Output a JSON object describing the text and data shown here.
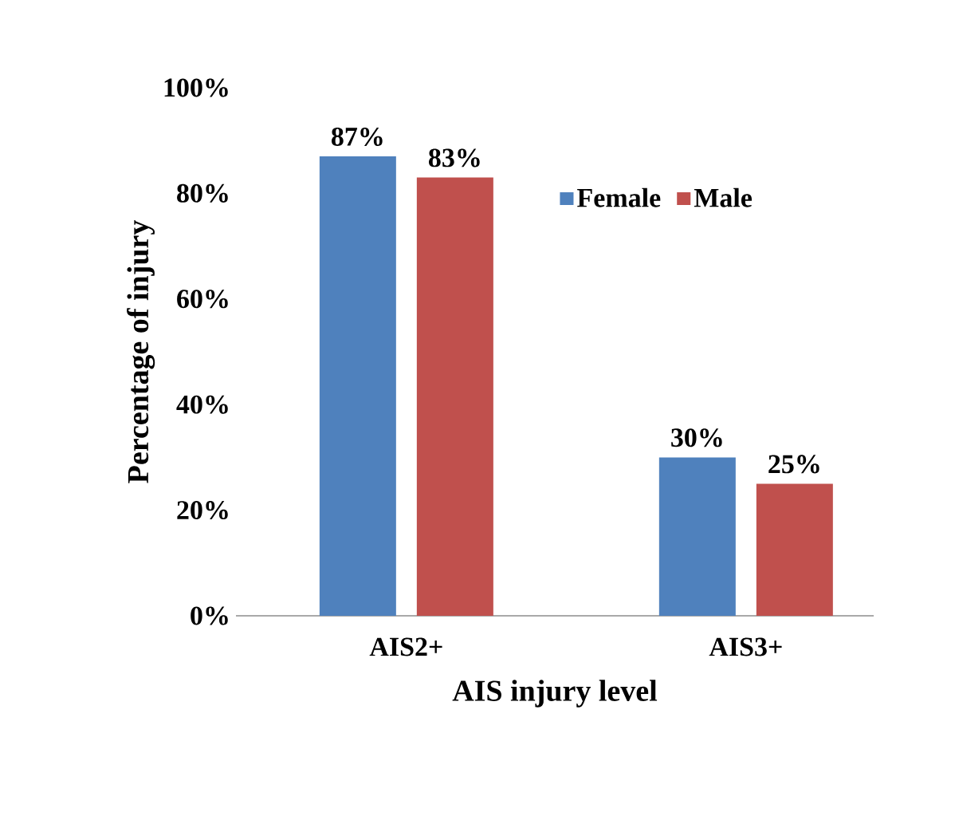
{
  "chart_data": {
    "type": "bar",
    "xlabel": "AIS injury level",
    "ylabel": "Percentage of injury",
    "categories": [
      "AIS2+",
      "AIS3+"
    ],
    "series": [
      {
        "name": "Female",
        "color": "#4f81bd",
        "values": [
          87,
          30
        ],
        "value_labels": [
          "87%",
          "30%"
        ]
      },
      {
        "name": "Male",
        "color": "#c0504d",
        "values": [
          83,
          25
        ],
        "value_labels": [
          "83%",
          "25%"
        ]
      }
    ],
    "ylim": [
      0,
      100
    ],
    "yticks": [
      {
        "value": 0,
        "label": "0%"
      },
      {
        "value": 20,
        "label": "20%"
      },
      {
        "value": 40,
        "label": "40%"
      },
      {
        "value": 60,
        "label": "60%"
      },
      {
        "value": 80,
        "label": "80%"
      },
      {
        "value": 100,
        "label": "100%"
      }
    ],
    "grid": false,
    "legend": "top right"
  }
}
